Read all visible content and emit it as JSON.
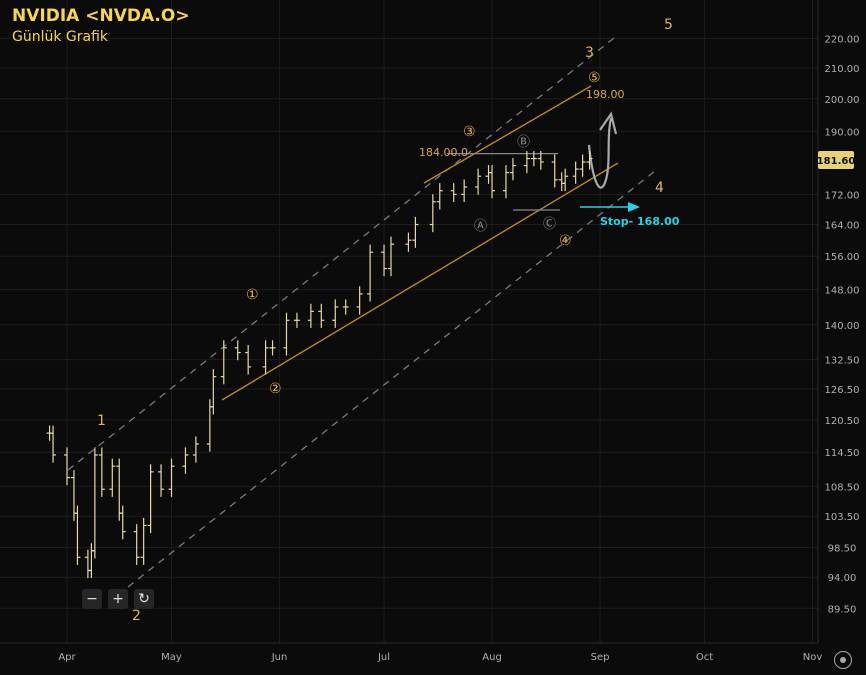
{
  "header": {
    "title": "NVIDIA <NVDA.O>",
    "subtitle": "Günlük Grafik"
  },
  "zoom": {
    "minus": "−",
    "plus": "+",
    "reset": "↻"
  },
  "colors": {
    "background": "#0b0b0b",
    "candle": "#e6d8a8",
    "wave": "#e2b04a",
    "channel": "#b8862f",
    "dashed": "#7a7a7a",
    "stop": "#28d2e6",
    "price_badge": "#e7d27a",
    "axis_text": "#b0b0b0",
    "grid": "#1c1c1c"
  },
  "chart_data": {
    "type": "ohlc",
    "title": "NVIDIA <NVDA.O>",
    "subtitle": "Günlük Grafik",
    "y_ticks": [
      89.5,
      94,
      98.5,
      103.5,
      108.5,
      114.5,
      120.5,
      126.5,
      132.5,
      140,
      148,
      156,
      164,
      172,
      181.6,
      190,
      200,
      210,
      220
    ],
    "y_tick_labels": [
      "89.50",
      "94.00",
      "98.50",
      "103.50",
      "108.50",
      "114.50",
      "120.50",
      "126.50",
      "132.50",
      "140.00",
      "148.00",
      "156.00",
      "164.00",
      "172.00",
      "181.60",
      "190.00",
      "200.00",
      "210.00",
      "220.00"
    ],
    "x_ticks": [
      "Apr",
      "May",
      "Jun",
      "Jul",
      "Aug",
      "Sep",
      "Oct",
      "Nov"
    ],
    "x_tick_dates": [
      "2025-04-01",
      "2025-05-01",
      "2025-06-01",
      "2025-07-01",
      "2025-08-01",
      "2025-09-01",
      "2025-10-01",
      "2025-11-01"
    ],
    "last_price": 181.6,
    "last_price_label": "181.60",
    "grid": true,
    "close_series": [
      [
        "2025-03-27",
        118
      ],
      [
        "2025-03-28",
        114
      ],
      [
        "2025-04-01",
        110
      ],
      [
        "2025-04-03",
        104
      ],
      [
        "2025-04-04",
        97
      ],
      [
        "2025-04-07",
        95
      ],
      [
        "2025-04-08",
        98
      ],
      [
        "2025-04-09",
        114
      ],
      [
        "2025-04-11",
        108
      ],
      [
        "2025-04-14",
        112
      ],
      [
        "2025-04-16",
        104
      ],
      [
        "2025-04-17",
        101
      ],
      [
        "2025-04-21",
        97
      ],
      [
        "2025-04-23",
        102
      ],
      [
        "2025-04-25",
        111
      ],
      [
        "2025-04-28",
        108
      ],
      [
        "2025-05-01",
        112
      ],
      [
        "2025-05-05",
        114
      ],
      [
        "2025-05-08",
        116
      ],
      [
        "2025-05-12",
        123
      ],
      [
        "2025-05-13",
        129
      ],
      [
        "2025-05-16",
        135
      ],
      [
        "2025-05-20",
        134
      ],
      [
        "2025-05-23",
        131
      ],
      [
        "2025-05-28",
        135
      ],
      [
        "2025-05-30",
        135
      ],
      [
        "2025-06-03",
        141
      ],
      [
        "2025-06-06",
        141
      ],
      [
        "2025-06-10",
        143
      ],
      [
        "2025-06-13",
        141
      ],
      [
        "2025-06-17",
        144
      ],
      [
        "2025-06-20",
        144
      ],
      [
        "2025-06-24",
        147
      ],
      [
        "2025-06-27",
        157
      ],
      [
        "2025-07-01",
        153
      ],
      [
        "2025-07-03",
        159
      ],
      [
        "2025-07-08",
        160
      ],
      [
        "2025-07-10",
        164
      ],
      [
        "2025-07-15",
        170
      ],
      [
        "2025-07-17",
        173
      ],
      [
        "2025-07-21",
        172
      ],
      [
        "2025-07-24",
        174
      ],
      [
        "2025-07-28",
        177
      ],
      [
        "2025-07-31",
        178
      ],
      [
        "2025-08-01",
        173
      ],
      [
        "2025-08-05",
        178
      ],
      [
        "2025-08-07",
        180
      ],
      [
        "2025-08-11",
        182
      ],
      [
        "2025-08-13",
        182
      ],
      [
        "2025-08-15",
        181
      ],
      [
        "2025-08-19",
        176
      ],
      [
        "2025-08-21",
        175
      ],
      [
        "2025-08-22",
        177
      ],
      [
        "2025-08-25",
        179
      ],
      [
        "2025-08-27",
        181
      ],
      [
        "2025-08-29",
        182
      ]
    ],
    "annotations": {
      "major_waves": [
        "1",
        "2",
        "3",
        "4",
        "5"
      ],
      "minor_waves": [
        "①",
        "②",
        "③",
        "④",
        "⑤"
      ],
      "corrective": [
        "Ⓐ",
        "Ⓑ",
        "Ⓒ"
      ],
      "level_184": "184.00.0",
      "level_198": "198.00",
      "stop": "Stop- 168.00",
      "stop_value": 168,
      "target_value": 198,
      "resistance_value": 184
    }
  }
}
